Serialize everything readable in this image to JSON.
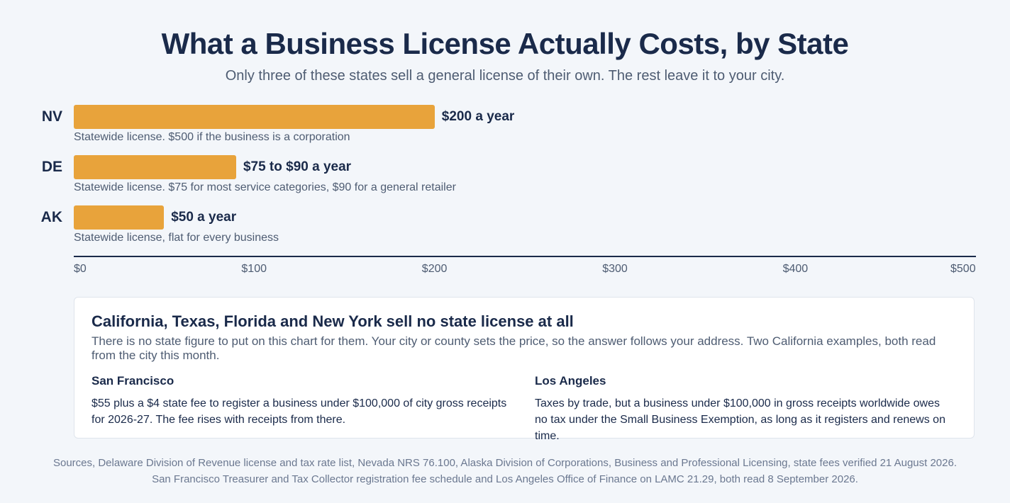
{
  "header": {
    "title": "What a Business License Actually Costs, by State",
    "subtitle": "Only three of these states sell a general license of their own. The rest leave it to your city."
  },
  "chart_data": {
    "type": "bar",
    "orientation": "horizontal",
    "categories": [
      "NV",
      "DE",
      "AK"
    ],
    "values": [
      200,
      90,
      50
    ],
    "range_low": [
      200,
      75,
      50
    ],
    "value_labels": [
      "$200 a year",
      "$75 to $90 a year",
      "$50 a year"
    ],
    "notes": [
      "Statewide license. $500 if the business is a corporation",
      "Statewide license. $75 for most service categories, $90 for a general retailer",
      "Statewide license, flat for every business"
    ],
    "xlim": [
      0,
      500
    ],
    "x_ticks": [
      0,
      100,
      200,
      300,
      400,
      500
    ],
    "x_tick_labels": [
      "$0",
      "$100",
      "$200",
      "$300",
      "$400",
      "$500"
    ],
    "bar_color": "#e8a33b",
    "grid": false
  },
  "callout": {
    "title": "California, Texas, Florida and New York sell no state license at all",
    "body": "There is no state figure to put on this chart for them. Your city or county sets the price, so the answer follows your address. Two California examples, both read from the city this month.",
    "cities": [
      {
        "name": "San Francisco",
        "text": "$55 plus a $4 state fee to register a business under $100,000 of city gross receipts for 2026-27. The fee rises with receipts from there."
      },
      {
        "name": "Los Angeles",
        "text": "Taxes by trade, but a business under $100,000 in gross receipts worldwide owes no tax under the Small Business Exemption, as long as it registers and renews on time."
      }
    ]
  },
  "sources": {
    "line1": "Sources, Delaware Division of Revenue license and tax rate list, Nevada NRS 76.100, Alaska Division of Corporations, Business and Professional Licensing, state fees verified 21 August 2026.",
    "line2": "San Francisco Treasurer and Tax Collector registration fee schedule and Los Angeles Office of Finance on LAMC 21.29, both read 8 September 2026."
  }
}
